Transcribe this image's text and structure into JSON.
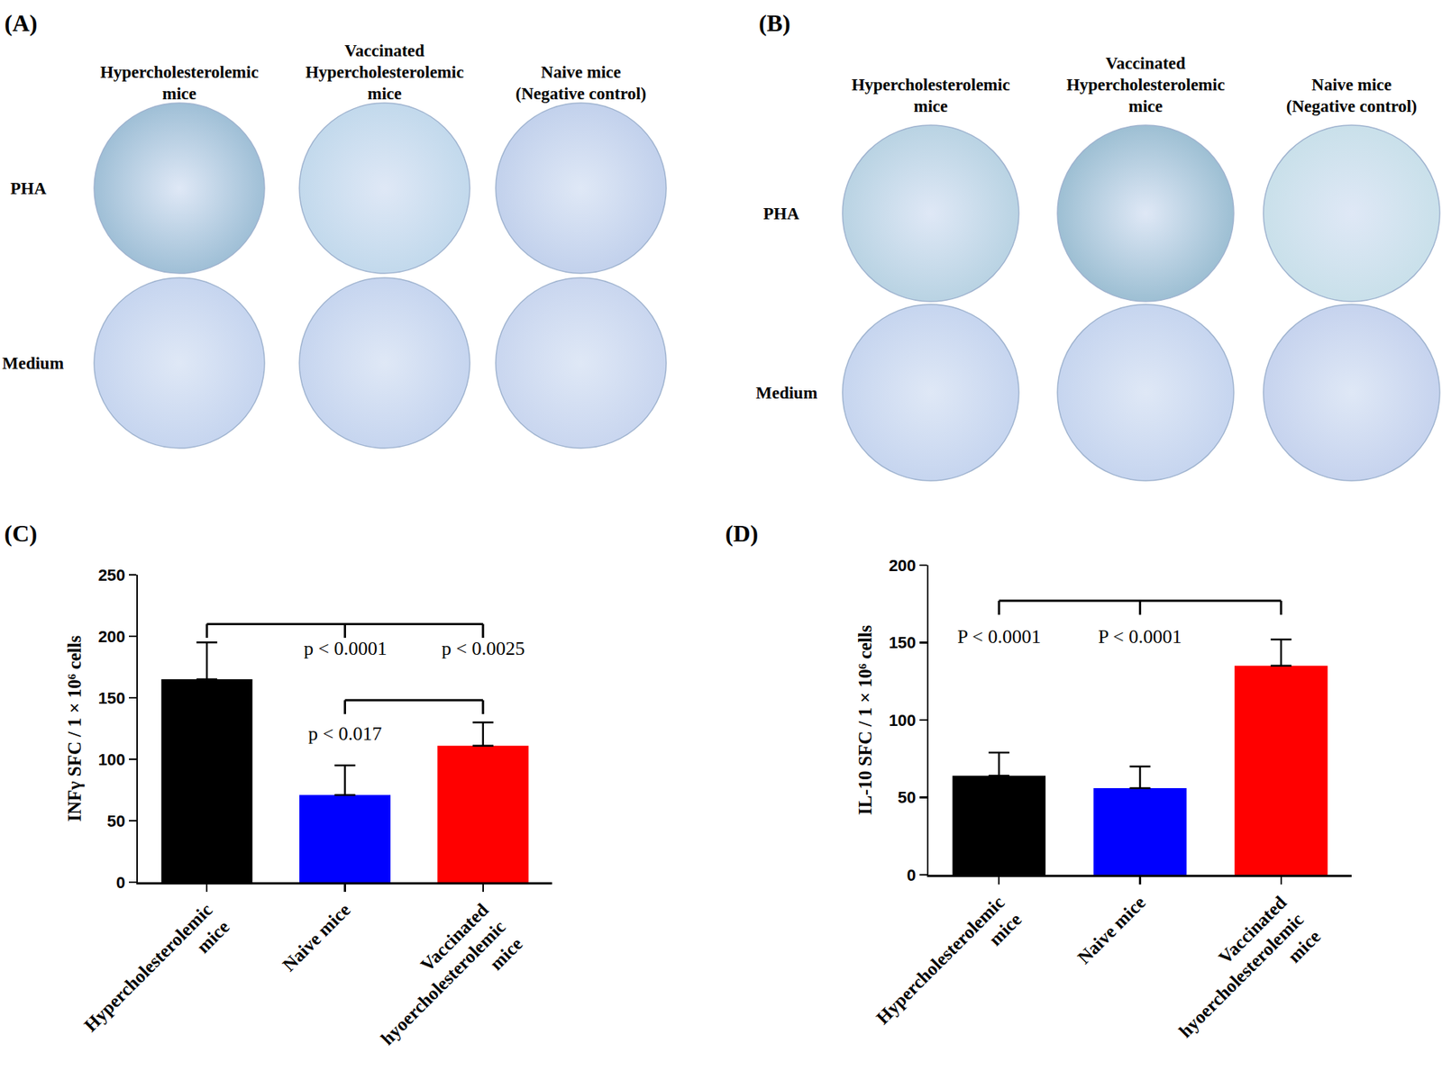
{
  "well_panels": [
    {
      "title": "(A)",
      "columns": [
        "Hypercholesterolemic\nmice",
        "Vaccinated\nHypercholesterolemic\nmice",
        "Naive mice\n(Negative control)"
      ],
      "rows": [
        "PHA",
        "Medium"
      ],
      "colors": [
        [
          "#9fbfd6",
          "#c2d9ec",
          "#c2d1ec"
        ],
        [
          "#c6d5ef",
          "#c6d5ef",
          "#c9d6ef"
        ]
      ]
    },
    {
      "title": "(B)",
      "columns": [
        "Hypercholesterolemic\nmice",
        "Vaccinated\nHypercholesterolemic\nmice",
        "Naive mice\n(Negative control)"
      ],
      "rows": [
        "PHA",
        "Medium"
      ],
      "colors": [
        [
          "#b9d3e3",
          "#9dbfd3",
          "#c9e0ea"
        ],
        [
          "#c6d5ef",
          "#c6d5ef",
          "#c6d3ee"
        ]
      ]
    }
  ],
  "chart_data": [
    {
      "type": "bar",
      "title": "(C)",
      "y_label": "INFγ SFC / 1 × 10⁶ cells",
      "categories": [
        "Hypercholesterolemic\nmice",
        "Naive mice",
        "Vaccinated\nhyoercholesterolemic\nmice"
      ],
      "values": [
        165,
        71,
        111
      ],
      "errors": [
        30,
        24,
        19
      ],
      "colors": [
        "#000000",
        "#0000ff",
        "#ff0000"
      ],
      "ylim": [
        0,
        250
      ],
      "yticks": [
        0,
        50,
        100,
        150,
        200,
        250
      ],
      "grid": false,
      "brackets": [
        {
          "categories": [
            "Hypercholesterolemic\nmice",
            "Naive mice",
            "Vaccinated\nhyoercholesterolemic\nmice"
          ],
          "y": 210,
          "labels": [
            {
              "text": "p < 0.0001",
              "category": "Naive mice",
              "y": 190
            },
            {
              "text": "p < 0.0025",
              "category": "Vaccinated\nhyoercholesterolemic\nmice",
              "y": 190
            }
          ]
        },
        {
          "categories": [
            "Naive mice",
            "Vaccinated\nhyoercholesterolemic\nmice"
          ],
          "y": 148,
          "labels": [
            {
              "text": "p < 0.017",
              "category": "Naive mice",
              "y": 121
            }
          ]
        }
      ]
    },
    {
      "type": "bar",
      "title": "(D)",
      "y_label": "IL-10 SFC / 1 × 10⁶ cells",
      "categories": [
        "Hypercholesterolemic\nmice",
        "Naive mice",
        "Vaccinated\nhyoercholesterolemic\nmice"
      ],
      "values": [
        64,
        56,
        135
      ],
      "errors": [
        15,
        14,
        17
      ],
      "colors": [
        "#000000",
        "#0000ff",
        "#ff0000"
      ],
      "ylim": [
        0,
        200
      ],
      "yticks": [
        0,
        50,
        100,
        150,
        200
      ],
      "grid": false,
      "brackets": [
        {
          "categories": [
            "Hypercholesterolemic\nmice",
            "Naive mice",
            "Vaccinated\nhyoercholesterolemic\nmice"
          ],
          "y": 177,
          "labels": [
            {
              "text": "P < 0.0001",
              "category": "Hypercholesterolemic\nmice",
              "y": 154
            },
            {
              "text": "P < 0.0001",
              "category": "Naive mice",
              "y": 154
            }
          ]
        }
      ]
    }
  ]
}
